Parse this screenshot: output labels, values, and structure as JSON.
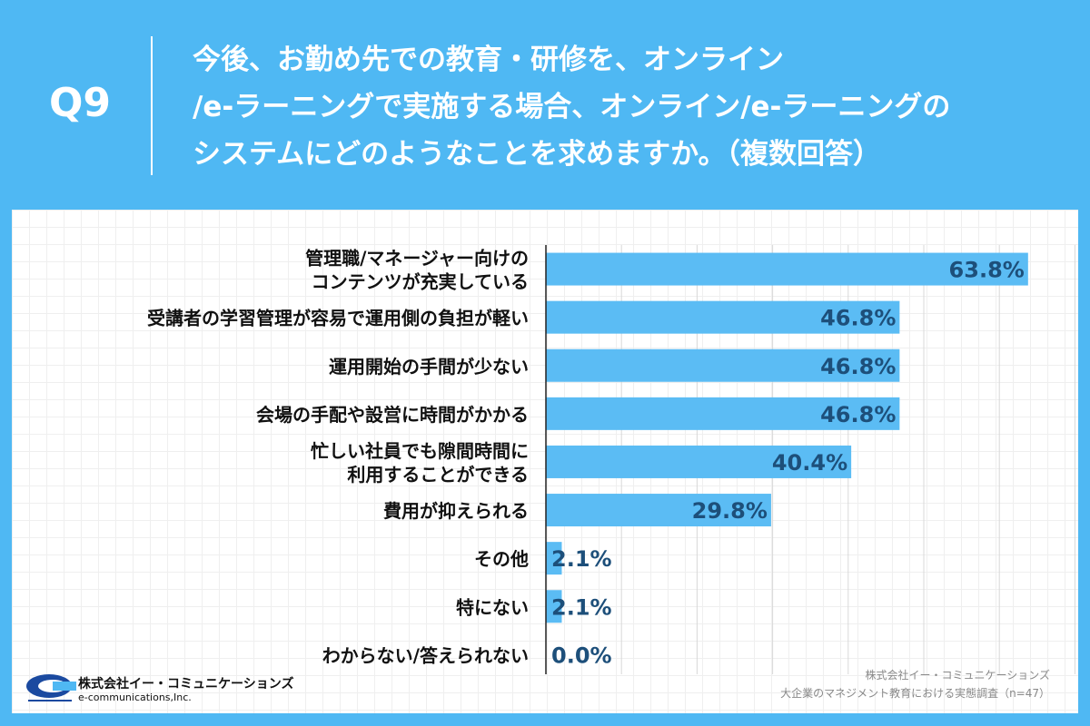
{
  "header": {
    "q_label": "Q9",
    "question_lines": [
      "今後、お勤め先での教育・研修を、オンライン",
      "/e-ラーニングで実施する場合、オンライン/e-ラーニングの",
      "システムにどのようなことを求めますか。（複数回答）"
    ]
  },
  "colors": {
    "background": "#4fb8f3",
    "bar": "#5bbcf4",
    "value_text": "#1d4f7a",
    "label_text": "#111111"
  },
  "chart_data": {
    "type": "bar",
    "orientation": "horizontal",
    "categories": [
      [
        "管理職/マネージャー向けの",
        "コンテンツが充実している"
      ],
      [
        "受講者の学習管理が容易で運用側の負担が軽い"
      ],
      [
        "運用開始の手間が少ない"
      ],
      [
        "会場の手配や設営に時間がかかる"
      ],
      [
        "忙しい社員でも隙間時間に",
        "利用することができる"
      ],
      [
        "費用が抑えられる"
      ],
      [
        "その他"
      ],
      [
        "特にない"
      ],
      [
        "わからない/答えられない"
      ]
    ],
    "values": [
      63.8,
      46.8,
      46.8,
      46.8,
      40.4,
      29.8,
      2.1,
      2.1,
      0.0
    ],
    "value_labels": [
      "63.8%",
      "46.8%",
      "46.8%",
      "46.8%",
      "40.4%",
      "29.8%",
      "2.1%",
      "2.1%",
      "0.0%"
    ],
    "xlim": [
      0,
      70
    ],
    "grid": true
  },
  "footer": {
    "company_name": "株式会社イー・コミュニケーションズ",
    "company_en": "e-communications,Inc.",
    "source_lines": [
      "株式会社イー・コミュニケーションズ",
      "大企業のマネジメント教育における実態調査（n=47）"
    ]
  }
}
